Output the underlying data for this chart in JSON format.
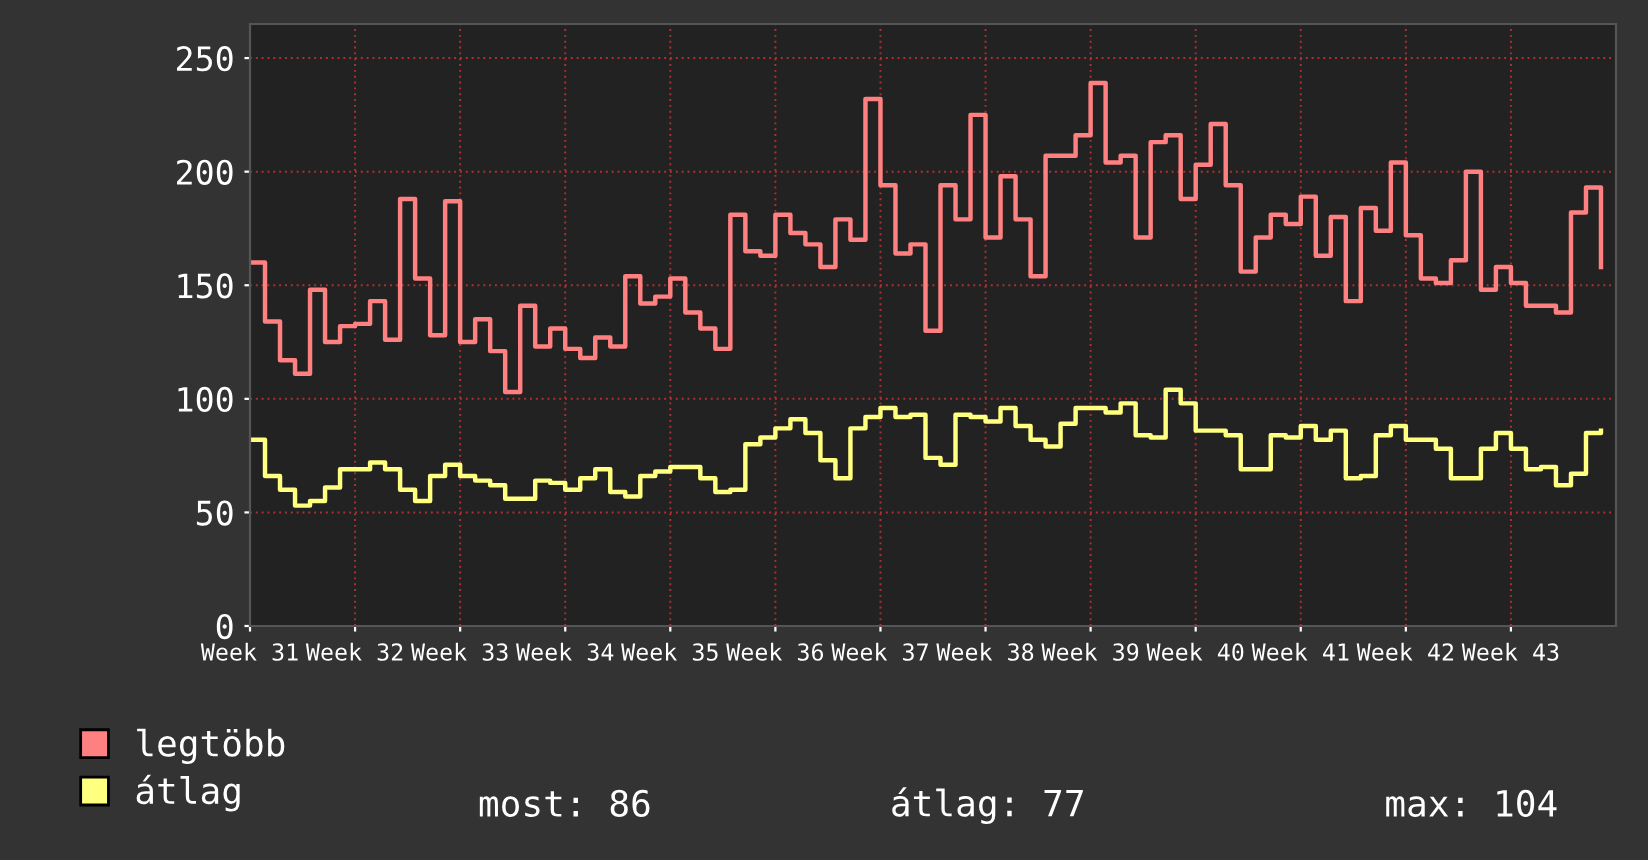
{
  "chart_data": {
    "type": "step",
    "categories": [
      "Week 31",
      null,
      null,
      null,
      null,
      null,
      null,
      "Week 32",
      null,
      null,
      null,
      null,
      null,
      null,
      "Week 33",
      null,
      null,
      null,
      null,
      null,
      null,
      "Week 34",
      null,
      null,
      null,
      null,
      null,
      null,
      "Week 35",
      null,
      null,
      null,
      null,
      null,
      null,
      "Week 36",
      null,
      null,
      null,
      null,
      null,
      null,
      "Week 37",
      null,
      null,
      null,
      null,
      null,
      null,
      "Week 38",
      null,
      null,
      null,
      null,
      null,
      null,
      "Week 39",
      null,
      null,
      null,
      null,
      null,
      null,
      "Week 40",
      null,
      null,
      null,
      null,
      null,
      null,
      "Week 41",
      null,
      null,
      null,
      null,
      null,
      null,
      "Week 42",
      null,
      null,
      null,
      null,
      null,
      null,
      "Week 43",
      null,
      null,
      null,
      null,
      null,
      null
    ],
    "series": [
      {
        "name": "legtöbb",
        "color": "#ff8080",
        "values": [
          160,
          134,
          117,
          111,
          148,
          125,
          132,
          133,
          143,
          126,
          188,
          153,
          128,
          187,
          125,
          135,
          121,
          103,
          141,
          123,
          131,
          122,
          118,
          127,
          123,
          154,
          142,
          145,
          153,
          138,
          131,
          122,
          181,
          165,
          163,
          181,
          173,
          168,
          158,
          179,
          170,
          232,
          194,
          164,
          168,
          130,
          194,
          179,
          225,
          171,
          198,
          179,
          154,
          207,
          207,
          216,
          239,
          204,
          207,
          171,
          213,
          216,
          188,
          203,
          221,
          194,
          156,
          171,
          181,
          177,
          189,
          163,
          180,
          143,
          184,
          174,
          204,
          172,
          153,
          151,
          161,
          200,
          148,
          158,
          151,
          141,
          141,
          138,
          182,
          193,
          158
        ]
      },
      {
        "name": "átlag",
        "color": "#ffff80",
        "values": [
          82,
          66,
          60,
          53,
          55,
          61,
          69,
          69,
          72,
          69,
          60,
          55,
          66,
          71,
          66,
          64,
          62,
          56,
          56,
          64,
          63,
          60,
          65,
          69,
          59,
          57,
          66,
          68,
          70,
          70,
          65,
          59,
          60,
          80,
          83,
          87,
          91,
          85,
          73,
          65,
          87,
          92,
          96,
          92,
          93,
          74,
          71,
          93,
          92,
          90,
          96,
          88,
          82,
          79,
          89,
          96,
          96,
          94,
          98,
          84,
          83,
          104,
          98,
          86,
          86,
          84,
          69,
          69,
          84,
          83,
          88,
          82,
          86,
          65,
          66,
          84,
          88,
          82,
          82,
          78,
          65,
          65,
          78,
          85,
          78,
          69,
          70,
          62,
          67,
          85,
          86
        ]
      }
    ],
    "ylim": [
      0,
      265
    ],
    "yticks": [
      0,
      50,
      100,
      150,
      200,
      250
    ],
    "grid": true,
    "legend": "bottom left",
    "annotations": [
      "most: 86",
      "átlag: 77",
      "max: 104"
    ]
  }
}
